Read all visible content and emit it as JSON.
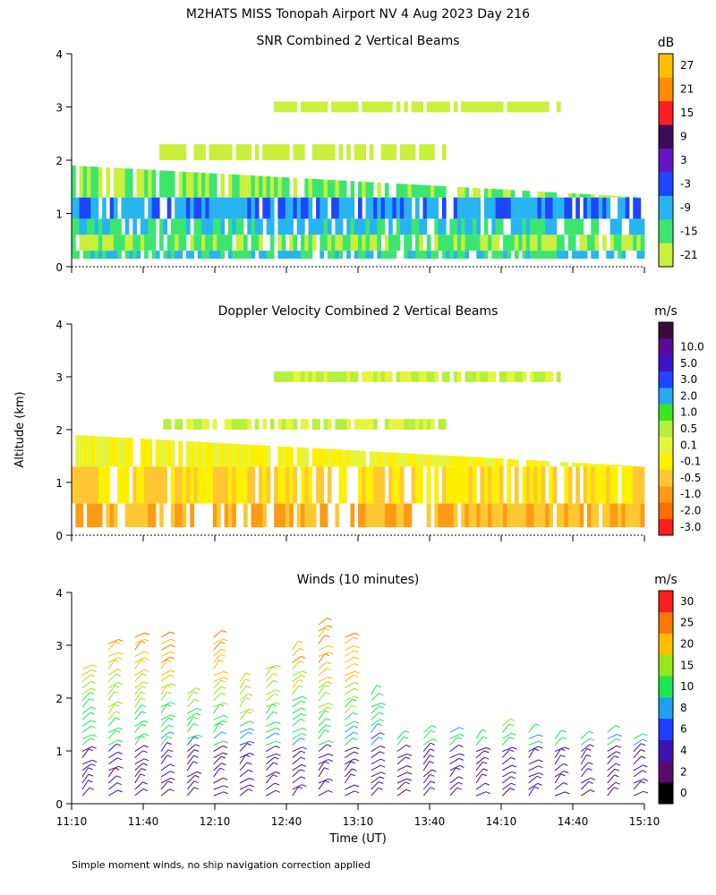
{
  "page": {
    "title": "M2HATS MISS Tonopah Airport NV   4 Aug 2023 Day 216",
    "footnote": "Simple moment winds, no ship navigation correction applied",
    "shared_ylabel": "Altitude (km)",
    "shared_xlabel": "Time (UT)"
  },
  "chart_data": [
    {
      "type": "heatmap",
      "title": "SNR Combined 2 Vertical Beams",
      "colorbar_label": "dB",
      "xlim": [
        "11:10",
        "15:10"
      ],
      "xticks": [
        "11:10",
        "11:40",
        "12:10",
        "12:40",
        "13:10",
        "13:40",
        "14:10",
        "14:40",
        "15:10"
      ],
      "ylim": [
        0,
        4
      ],
      "yticks": [
        "0",
        "1",
        "2",
        "3",
        "4"
      ],
      "colorbar": {
        "ticks": [
          "-21",
          "-15",
          "-9",
          "-3",
          "3",
          "9",
          "15",
          "21",
          "27"
        ],
        "colors": [
          "#c8f03c",
          "#3ce66e",
          "#28b4f0",
          "#1e46ff",
          "#6414c8",
          "#3c0a5a",
          "#ff1e1e",
          "#ff8c00",
          "#ffbe00"
        ]
      },
      "layers": [
        {
          "alt_low": 0.15,
          "alt_high": 0.3,
          "value": -9
        },
        {
          "alt_low": 0.3,
          "alt_high": 0.6,
          "value": -15
        },
        {
          "alt_low": 0.6,
          "alt_high": 0.9,
          "value": -9
        },
        {
          "alt_low": 0.9,
          "alt_high": 1.3,
          "value": -3
        },
        {
          "alt_low": 1.3,
          "alt_high": 1.9,
          "value": -15
        },
        {
          "alt_low": 2.0,
          "alt_high": 2.3,
          "value": -21
        },
        {
          "alt_low": 2.9,
          "alt_high": 3.1,
          "value": -21
        }
      ]
    },
    {
      "type": "heatmap",
      "title": "Doppler Velocity Combined 2 Vertical Beams",
      "colorbar_label": "m/s",
      "xlim": [
        "11:10",
        "15:10"
      ],
      "xticks": [
        "11:10",
        "11:40",
        "12:10",
        "12:40",
        "13:10",
        "13:40",
        "14:10",
        "14:40",
        "15:10"
      ],
      "ylim": [
        0,
        4
      ],
      "yticks": [
        "0",
        "1",
        "2",
        "3",
        "4"
      ],
      "colorbar": {
        "ticks": [
          "-3.0",
          "-2.0",
          "-1.0",
          "-0.5",
          "-0.1",
          "0.1",
          "0.5",
          "1.0",
          "2.0",
          "3.0",
          "5.0",
          "10.0"
        ],
        "colors": [
          "#ff1e1e",
          "#ff6e00",
          "#ff9a14",
          "#ffc832",
          "#fff000",
          "#e6f53c",
          "#b4f03c",
          "#3ce61e",
          "#28aaf0",
          "#1e46ff",
          "#3c14c8",
          "#5a0a96",
          "#3c0a3c"
        ]
      },
      "layers": [
        {
          "alt_low": 0.15,
          "alt_high": 0.6,
          "value": -0.5
        },
        {
          "alt_low": 0.6,
          "alt_high": 1.3,
          "value": -0.1
        },
        {
          "alt_low": 1.3,
          "alt_high": 1.9,
          "value": 0.1
        },
        {
          "alt_low": 2.0,
          "alt_high": 2.2,
          "value": 0.5
        },
        {
          "alt_low": 2.9,
          "alt_high": 3.1,
          "value": 0.5
        }
      ]
    },
    {
      "type": "wind-barbs",
      "title": "Winds (10 minutes)",
      "colorbar_label": "m/s",
      "xlim": [
        "11:10",
        "15:10"
      ],
      "xticks": [
        "11:10",
        "11:40",
        "12:10",
        "12:40",
        "13:10",
        "13:40",
        "14:10",
        "14:40",
        "15:10"
      ],
      "ylim": [
        0,
        4
      ],
      "yticks": [
        "0",
        "1",
        "2",
        "3",
        "4"
      ],
      "colorbar": {
        "ticks": [
          "0",
          "2",
          "4",
          "6",
          "8",
          "10",
          "15",
          "20",
          "25",
          "30"
        ],
        "colors": [
          "#000000",
          "#5a0a6e",
          "#3c14b4",
          "#1e3cff",
          "#1ea0f0",
          "#1ee650",
          "#96e61e",
          "#ffbe00",
          "#ff7800",
          "#ff1e1e"
        ]
      }
    }
  ]
}
